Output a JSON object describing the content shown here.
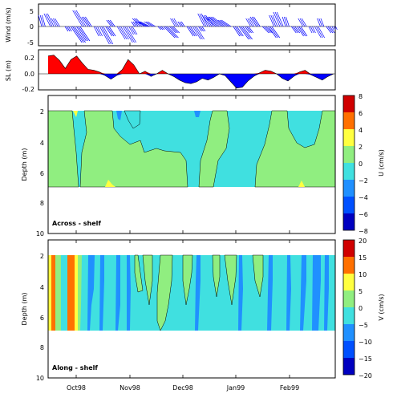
{
  "chart_data": [
    {
      "id": "wind",
      "type": "stick-vector",
      "ylabel": "Wind (m/s)",
      "ylim": [
        -7,
        6
      ],
      "yticks": [
        "5",
        "0",
        "-5"
      ],
      "color": "#0000ff",
      "vectors": [
        {
          "t": 0.0,
          "u": -1.0,
          "v": 3.5
        },
        {
          "t": 0.03,
          "u": -2.0,
          "v": 4.0
        },
        {
          "t": 0.05,
          "u": -1.5,
          "v": 2.5
        },
        {
          "t": 0.08,
          "u": 1.0,
          "v": -1.5
        },
        {
          "t": 0.1,
          "u": 3.5,
          "v": -5.0
        },
        {
          "t": 0.12,
          "u": 3.0,
          "v": -4.5
        },
        {
          "t": 0.14,
          "u": -3.0,
          "v": 5.0
        },
        {
          "t": 0.16,
          "u": -2.0,
          "v": 3.0
        },
        {
          "t": 0.18,
          "u": 1.5,
          "v": -3.0
        },
        {
          "t": 0.2,
          "u": 3.0,
          "v": -5.5
        },
        {
          "t": 0.22,
          "u": 2.0,
          "v": -3.0
        },
        {
          "t": 0.24,
          "u": -1.5,
          "v": 2.0
        },
        {
          "t": 0.26,
          "u": 2.5,
          "v": -4.0
        },
        {
          "t": 0.28,
          "u": 3.0,
          "v": -5.0
        },
        {
          "t": 0.3,
          "u": 1.5,
          "v": -2.5
        },
        {
          "t": 0.32,
          "u": -1.0,
          "v": 1.5
        },
        {
          "t": 0.34,
          "u": -2.5,
          "v": 2.5
        },
        {
          "t": 0.36,
          "u": -3.0,
          "v": 1.5
        },
        {
          "t": 0.38,
          "u": -2.5,
          "v": 1.5
        },
        {
          "t": 0.4,
          "u": 1.0,
          "v": -1.0
        },
        {
          "t": 0.42,
          "u": 3.5,
          "v": -3.5
        },
        {
          "t": 0.44,
          "u": 2.0,
          "v": -2.0
        },
        {
          "t": 0.46,
          "u": -1.5,
          "v": 2.5
        },
        {
          "t": 0.48,
          "u": -1.0,
          "v": 1.5
        },
        {
          "t": 0.5,
          "u": 2.0,
          "v": -3.0
        },
        {
          "t": 0.52,
          "u": 2.5,
          "v": -4.0
        },
        {
          "t": 0.54,
          "u": 1.0,
          "v": -1.5
        },
        {
          "t": 0.56,
          "u": -2.0,
          "v": 4.0
        },
        {
          "t": 0.58,
          "u": -2.5,
          "v": 3.5
        },
        {
          "t": 0.6,
          "u": -3.5,
          "v": 3.0
        },
        {
          "t": 0.62,
          "u": -4.0,
          "v": 3.0
        },
        {
          "t": 0.64,
          "u": -3.0,
          "v": 2.0
        },
        {
          "t": 0.66,
          "u": 2.0,
          "v": -3.0
        },
        {
          "t": 0.68,
          "u": 3.0,
          "v": -4.0
        },
        {
          "t": 0.7,
          "u": 1.5,
          "v": -2.0
        },
        {
          "t": 0.72,
          "u": -1.5,
          "v": 2.5
        },
        {
          "t": 0.74,
          "u": -2.0,
          "v": 3.0
        },
        {
          "t": 0.76,
          "u": 2.0,
          "v": -2.0
        },
        {
          "t": 0.78,
          "u": 2.5,
          "v": -3.5
        },
        {
          "t": 0.8,
          "u": -1.5,
          "v": 3.5
        },
        {
          "t": 0.82,
          "u": -2.0,
          "v": 4.5
        },
        {
          "t": 0.84,
          "u": -1.0,
          "v": 3.0
        },
        {
          "t": 0.86,
          "u": 1.5,
          "v": -2.0
        },
        {
          "t": 0.88,
          "u": 2.0,
          "v": -3.0
        },
        {
          "t": 0.9,
          "u": -1.5,
          "v": 2.5
        },
        {
          "t": 0.92,
          "u": 1.0,
          "v": -2.0
        },
        {
          "t": 0.94,
          "u": 2.0,
          "v": -3.5
        },
        {
          "t": 0.96,
          "u": -1.0,
          "v": 2.5
        },
        {
          "t": 0.98,
          "u": 1.5,
          "v": -2.0
        },
        {
          "t": 1.0,
          "u": 0.5,
          "v": -1.0
        }
      ]
    },
    {
      "id": "sea_level",
      "type": "area",
      "ylabel": "SL (m)",
      "ylim": [
        -0.2,
        0.25
      ],
      "yticks": [
        "0.2",
        "0.0",
        "-0.2"
      ],
      "positive_color": "#ff0000",
      "negative_color": "#0000ff",
      "t": [
        0.0,
        0.02,
        0.04,
        0.06,
        0.08,
        0.1,
        0.12,
        0.14,
        0.16,
        0.18,
        0.2,
        0.22,
        0.24,
        0.26,
        0.28,
        0.3,
        0.32,
        0.34,
        0.36,
        0.38,
        0.4,
        0.42,
        0.44,
        0.46,
        0.48,
        0.5,
        0.52,
        0.54,
        0.56,
        0.58,
        0.6,
        0.62,
        0.64,
        0.66,
        0.68,
        0.7,
        0.72,
        0.74,
        0.76,
        0.78,
        0.8,
        0.82,
        0.84,
        0.86,
        0.88,
        0.9,
        0.92,
        0.94,
        0.96,
        0.98,
        1.0
      ],
      "values": [
        0.2,
        0.21,
        0.15,
        0.06,
        0.16,
        0.2,
        0.12,
        0.05,
        0.04,
        0.02,
        -0.02,
        -0.06,
        -0.02,
        0.05,
        0.16,
        0.1,
        0.0,
        0.03,
        -0.03,
        0.0,
        0.04,
        0.0,
        -0.03,
        -0.07,
        -0.1,
        -0.11,
        -0.09,
        -0.05,
        -0.07,
        -0.04,
        0.0,
        -0.02,
        -0.09,
        -0.16,
        -0.15,
        -0.08,
        -0.03,
        0.01,
        0.04,
        0.03,
        0.0,
        -0.05,
        -0.08,
        -0.03,
        0.02,
        0.04,
        -0.01,
        -0.04,
        -0.07,
        -0.03,
        0.0
      ]
    },
    {
      "id": "across_shelf",
      "type": "heatmap",
      "panel_label": "Across - shelf",
      "ylabel": "Depth (m)",
      "yticks": [
        "2",
        "4",
        "6",
        "8",
        "10"
      ],
      "colorbar_label": "U (cm/s)",
      "colorbar_ticks": [
        "8",
        "6",
        "4",
        "2",
        "0",
        "−2",
        "−4",
        "−6",
        "−8"
      ],
      "colorbar_colors": [
        "#d00000",
        "#ff7000",
        "#ffff40",
        "#90ee80",
        "#40e0e0",
        "#2090ff",
        "#0050ff",
        "#0000c0"
      ],
      "background": "#40e0e0",
      "main_fill": "#90ee80",
      "secondary_fill": "#2090ff",
      "accent_fill": "#ffff40"
    },
    {
      "id": "along_shelf",
      "type": "heatmap",
      "panel_label": "Along - shelf",
      "ylabel": "Depth (m)",
      "yticks": [
        "2",
        "4",
        "6",
        "8",
        "10"
      ],
      "xticks": [
        "Oct98",
        "Nov98",
        "Dec98",
        "Jan99",
        "Feb99"
      ],
      "colorbar_label": "V (cm/s)",
      "colorbar_ticks": [
        "20",
        "15",
        "10",
        "5",
        "0",
        "−5",
        "−10",
        "−15",
        "−20"
      ],
      "colorbar_colors": [
        "#d00000",
        "#ff7000",
        "#ffff40",
        "#90ee80",
        "#40e0e0",
        "#2090ff",
        "#0050ff",
        "#0000c0"
      ],
      "background": "#40e0e0",
      "main_fill": "#90ee80",
      "secondary_fill": "#2090ff",
      "accent_fill": "#ff7000"
    }
  ]
}
